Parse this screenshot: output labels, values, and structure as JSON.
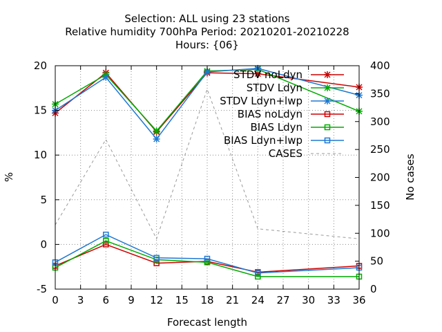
{
  "chart_data": {
    "type": "line",
    "title_lines": [
      "Selection: ALL using    23 stations",
      "Relative humidity 700hPa   Period: 20210201-20210228",
      "Hours: {06}"
    ],
    "xlabel": "Forecast length",
    "ylabel_left": "%",
    "ylabel_right": "No cases",
    "xlim": [
      0,
      36
    ],
    "ylim_left": [
      -5,
      20
    ],
    "ylim_right": [
      0,
      400
    ],
    "x_ticks": [
      "0",
      "3",
      "6",
      "9",
      "12",
      "15",
      "18",
      "21",
      "24",
      "27",
      "30",
      "33",
      "36"
    ],
    "y_ticks_left": [
      "-5",
      "0",
      "5",
      "10",
      "15",
      "20"
    ],
    "y_ticks_right": [
      "0",
      "50",
      "100",
      "150",
      "200",
      "250",
      "300",
      "350",
      "400"
    ],
    "grid": true,
    "legend_position": "top-right",
    "series": [
      {
        "name": "STDV noLdyn",
        "color": "#cc0000",
        "marker": "x",
        "axis": "left",
        "dash": false,
        "x": [
          0,
          6,
          12,
          18,
          24,
          36
        ],
        "y": [
          14.7,
          19.2,
          12.6,
          19.2,
          19.1,
          17.6
        ]
      },
      {
        "name": "STDV Ldyn",
        "color": "#00aa00",
        "marker": "x",
        "axis": "left",
        "dash": false,
        "x": [
          0,
          6,
          12,
          18,
          24,
          36
        ],
        "y": [
          15.7,
          19.0,
          12.7,
          19.4,
          19.6,
          14.9
        ]
      },
      {
        "name": "STDV Ldyn+lwp",
        "color": "#1e78d2",
        "marker": "x",
        "axis": "left",
        "dash": false,
        "x": [
          0,
          6,
          12,
          18,
          24,
          36
        ],
        "y": [
          15.0,
          18.7,
          11.8,
          19.3,
          19.7,
          16.7
        ]
      },
      {
        "name": "BIAS noLdyn",
        "color": "#cc0000",
        "marker": "s",
        "axis": "left",
        "dash": false,
        "x": [
          0,
          6,
          12,
          18,
          24,
          36
        ],
        "y": [
          -2.4,
          0.0,
          -2.1,
          -1.9,
          -3.1,
          -2.4
        ]
      },
      {
        "name": "BIAS Ldyn",
        "color": "#00aa00",
        "marker": "s",
        "axis": "left",
        "dash": false,
        "x": [
          0,
          6,
          12,
          18,
          24,
          36
        ],
        "y": [
          -2.6,
          0.4,
          -1.7,
          -2.0,
          -3.6,
          -3.6
        ]
      },
      {
        "name": "BIAS Ldyn+lwp",
        "color": "#1e78d2",
        "marker": "s",
        "axis": "left",
        "dash": false,
        "x": [
          0,
          6,
          12,
          18,
          24,
          36
        ],
        "y": [
          -2.0,
          1.1,
          -1.5,
          -1.6,
          -3.2,
          -2.6
        ]
      },
      {
        "name": "CASES",
        "color": "#999999",
        "marker": "none",
        "axis": "right",
        "dash": true,
        "x": [
          0,
          6,
          12,
          18,
          24,
          36
        ],
        "y": [
          115,
          268,
          90,
          358,
          108,
          90
        ]
      }
    ]
  }
}
